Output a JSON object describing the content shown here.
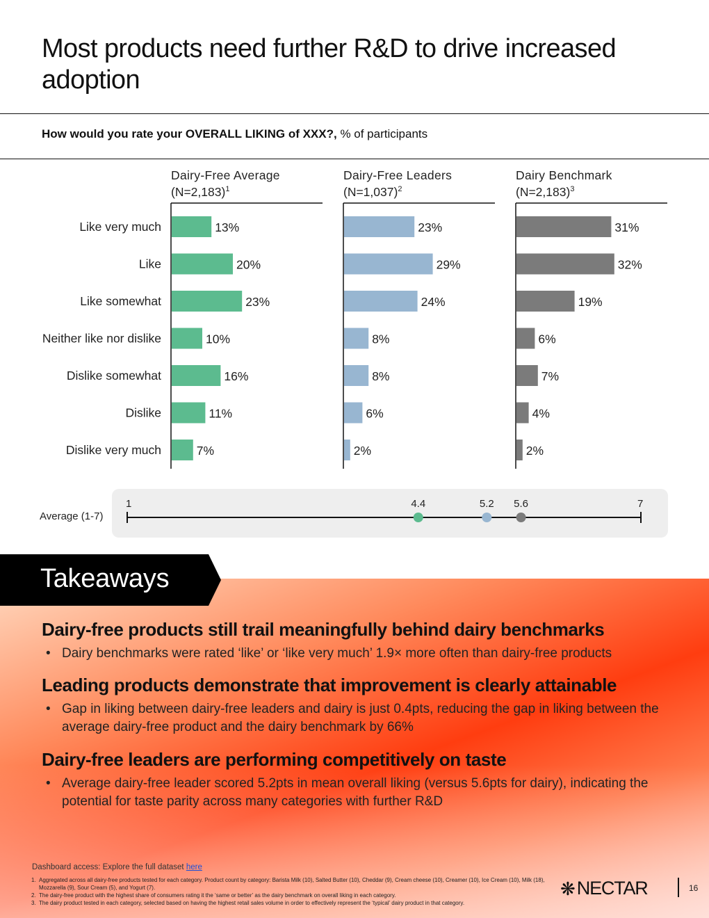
{
  "page": {
    "title": "Most products need further R&D to drive increased adoption",
    "question_bold": "How would you rate your OVERALL LIKING of XXX?,",
    "question_rest": " % of participants",
    "page_number": "16"
  },
  "chart_data": {
    "type": "bar",
    "orientation": "horizontal",
    "categories": [
      "Like very much",
      "Like",
      "Like somewhat",
      "Neither like nor dislike",
      "Dislike somewhat",
      "Dislike",
      "Dislike very much"
    ],
    "series": [
      {
        "name": "Dairy-Free Average",
        "n_label": "(N=2,183)",
        "footnote": "1",
        "color": "#5cbb8f",
        "values": [
          13,
          20,
          23,
          10,
          16,
          11,
          7
        ]
      },
      {
        "name": "Dairy-Free Leaders",
        "n_label": "(N=1,037)",
        "footnote": "2",
        "color": "#98b6d1",
        "values": [
          23,
          29,
          24,
          8,
          8,
          6,
          2
        ]
      },
      {
        "name": "Dairy Benchmark",
        "n_label": "(N=2,183)",
        "footnote": "3",
        "color": "#7b7b7b",
        "values": [
          31,
          32,
          19,
          6,
          7,
          4,
          2
        ]
      }
    ],
    "unit": "%",
    "average_scale": {
      "label": "Average (1-7)",
      "min": 1,
      "max": 7,
      "min_label": "1",
      "max_label": "7",
      "points": [
        {
          "series": "Dairy-Free Average",
          "value": 4.4,
          "label": "4.4",
          "color": "#5cbb8f"
        },
        {
          "series": "Dairy-Free Leaders",
          "value": 5.2,
          "label": "5.2",
          "color": "#98b6d1"
        },
        {
          "series": "Dairy Benchmark",
          "value": 5.6,
          "label": "5.6",
          "color": "#7b7b7b"
        }
      ]
    }
  },
  "takeaways": {
    "header": "Takeaways",
    "items": [
      {
        "heading": "Dairy-free products still trail meaningfully behind dairy benchmarks",
        "bullet": "Dairy benchmarks were rated ‘like’ or ‘like very much’ 1.9× more often than dairy-free products"
      },
      {
        "heading": "Leading products demonstrate that improvement is clearly attainable",
        "bullet": "Gap in liking between dairy-free leaders and dairy is just 0.4pts, reducing the gap in liking between the average dairy-free product and the dairy benchmark by 66%"
      },
      {
        "heading": "Dairy-free leaders are performing competitively on taste",
        "bullet": "Average dairy-free leader scored 5.2pts in mean overall liking (versus 5.6pts for dairy), indicating the potential for taste parity across many categories with further R&D"
      }
    ]
  },
  "footer": {
    "dashboard_text": "Dashboard access: Explore the full dataset ",
    "dashboard_link": "here",
    "notes": [
      {
        "num": "1.",
        "text": "Aggregated across all dairy-free products tested for each category. Product count by category: Barista Milk (10), Salted Butter (10), Cheddar (9), Cream cheese (10), Creamer (10), Ice Cream (10), Milk (18), Mozzarella (9), Sour Cream (5), and Yogurt (7)."
      },
      {
        "num": "2.",
        "text": "The dairy-free product with the highest share of consumers rating it the ‘same or better’ as the dairy benchmark on overall liking in each category."
      },
      {
        "num": "3.",
        "text": "The dairy product tested in each category, selected based on having the highest retail sales volume in order to effectively represent the ‘typical’ dairy product in that category."
      }
    ],
    "logo_text": "NECTAR",
    "logo_icon": "nectar-flower-icon"
  }
}
